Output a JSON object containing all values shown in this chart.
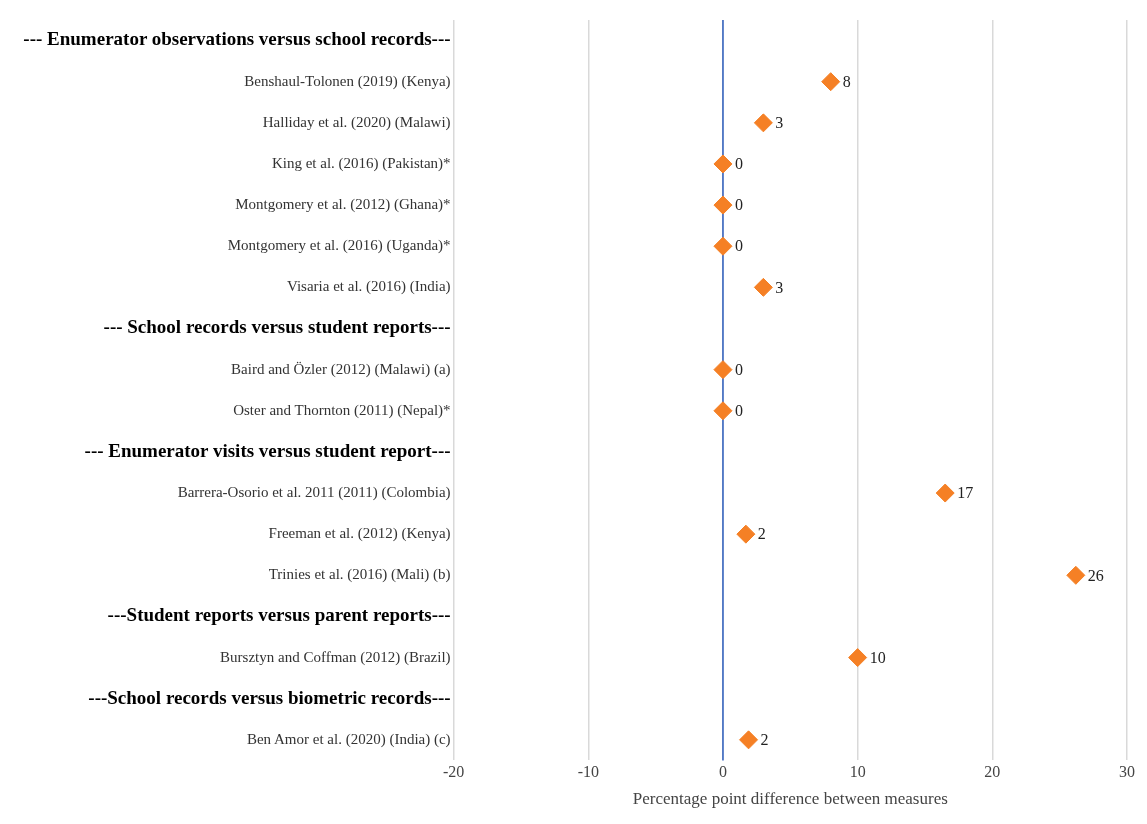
{
  "chart_data": {
    "type": "scatter",
    "orientation": "horizontal",
    "xlabel": "Percentage point difference between measures",
    "categories": [
      "--- Enumerator observations versus school records---",
      "Benshaul-Tolonen (2019) (Kenya)",
      "Halliday et al. (2020) (Malawi)",
      "King et al. (2016) (Pakistan)*",
      "Montgomery et al. (2012) (Ghana)*",
      "Montgomery et al. (2016) (Uganda)*",
      "Visaria et al. (2016) (India)",
      "--- School records versus student reports---",
      "Baird and Özler (2012) (Malawi) (a)",
      "Oster and Thornton (2011) (Nepal)*",
      "--- Enumerator visits versus student report---",
      "Barrera-Osorio et al. 2011 (2011) (Colombia)",
      "Freeman et al. (2012) (Kenya)",
      "Trinies et al. (2016) (Mali) (b)",
      "---Student reports versus parent reports---",
      "Bursztyn and Coffman (2012) (Brazil)",
      "---School records versus biometric records---",
      "Ben Amor et al. (2020) (India) (c)"
    ],
    "values": [
      null,
      8,
      3,
      0,
      0,
      0,
      3,
      null,
      0,
      0,
      null,
      16.5,
      1.7,
      26.2,
      null,
      10,
      null,
      1.9
    ],
    "value_labels": [
      null,
      "8",
      "3",
      "0",
      "0",
      "0",
      "3",
      null,
      "0",
      "0",
      null,
      "17",
      "2",
      "26",
      null,
      "10",
      null,
      "2"
    ],
    "color": "#f58025",
    "marker": "diamond",
    "xlim": [
      -20,
      30
    ],
    "xticks": [
      -20,
      -10,
      0,
      10,
      20,
      30
    ],
    "grid": "x",
    "ref_lines": [
      {
        "axis": "x",
        "value": 0,
        "color": "#2e5fbf"
      }
    ]
  }
}
